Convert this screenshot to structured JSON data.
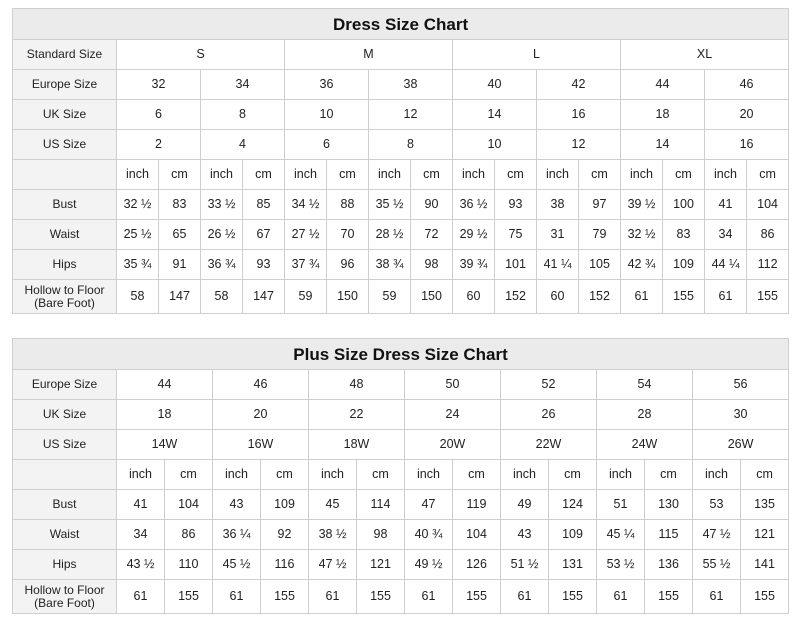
{
  "tables": [
    {
      "title": "Dress Size Chart",
      "rows": [
        {
          "label": "Standard Size",
          "cells": [
            "S",
            "M",
            "L",
            "XL"
          ]
        },
        {
          "label": "Europe Size",
          "cells": [
            32,
            34,
            36,
            38,
            40,
            42,
            44,
            46
          ]
        },
        {
          "label": "UK Size",
          "cells": [
            6,
            8,
            10,
            12,
            14,
            16,
            18,
            20
          ]
        },
        {
          "label": "US Size",
          "cells": [
            2,
            4,
            6,
            8,
            10,
            12,
            14,
            16
          ]
        },
        {
          "cells": [
            "inch",
            "cm",
            "inch",
            "cm",
            "inch",
            "cm",
            "inch",
            "cm",
            "inch",
            "cm",
            "inch",
            "cm",
            "inch",
            "cm",
            "inch",
            "cm"
          ]
        },
        {
          "label": "Bust",
          "cells": [
            "32 ½",
            83,
            "33 ½",
            85,
            "34 ½",
            88,
            "35 ½",
            90,
            "36 ½",
            93,
            38,
            97,
            "39 ½",
            100,
            41,
            104
          ]
        },
        {
          "label": "Waist",
          "cells": [
            "25 ½",
            65,
            "26 ½",
            67,
            "27 ½",
            70,
            "28 ½",
            72,
            "29 ½",
            75,
            31,
            79,
            "32 ½",
            83,
            34,
            86
          ]
        },
        {
          "label": "Hips",
          "cells": [
            "35 ¾",
            91,
            "36 ¾",
            93,
            "37 ¾",
            96,
            "38 ¾",
            98,
            "39 ¾",
            101,
            "41 ¼",
            105,
            "42 ¾",
            109,
            "44 ¼",
            112
          ]
        },
        {
          "label": [
            "Hollow to Floor",
            "(Bare Foot)"
          ],
          "cells": [
            58,
            147,
            58,
            147,
            59,
            150,
            59,
            150,
            60,
            152,
            60,
            152,
            61,
            155,
            61,
            155
          ]
        }
      ]
    },
    {
      "title": "Plus Size Dress Size Chart",
      "rows": [
        {
          "label": "Europe Size",
          "cells": [
            44,
            46,
            48,
            50,
            52,
            54,
            56
          ]
        },
        {
          "label": "UK Size",
          "cells": [
            18,
            20,
            22,
            24,
            26,
            28,
            30
          ]
        },
        {
          "label": "US Size",
          "cells": [
            "14W",
            "16W",
            "18W",
            "20W",
            "22W",
            "24W",
            "26W"
          ]
        },
        {
          "cells": [
            "inch",
            "cm",
            "inch",
            "cm",
            "inch",
            "cm",
            "inch",
            "cm",
            "inch",
            "cm",
            "inch",
            "cm",
            "inch",
            "cm"
          ]
        },
        {
          "label": "Bust",
          "cells": [
            41,
            104,
            43,
            109,
            45,
            114,
            47,
            119,
            49,
            124,
            51,
            130,
            53,
            135
          ]
        },
        {
          "label": "Waist",
          "cells": [
            34,
            86,
            "36 ¼",
            92,
            "38 ½",
            98,
            "40 ¾",
            104,
            43,
            109,
            "45 ¼",
            115,
            "47 ½",
            121
          ]
        },
        {
          "label": "Hips",
          "cells": [
            "43 ½",
            110,
            "45 ½",
            116,
            "47 ½",
            121,
            "49 ½",
            126,
            "51 ½",
            131,
            "53 ½",
            136,
            "55 ½",
            141
          ]
        },
        {
          "label": [
            "Hollow to Floor",
            "(Bare Foot)"
          ],
          "cells": [
            61,
            155,
            61,
            155,
            61,
            155,
            61,
            155,
            61,
            155,
            61,
            155,
            61,
            155
          ]
        }
      ]
    }
  ]
}
